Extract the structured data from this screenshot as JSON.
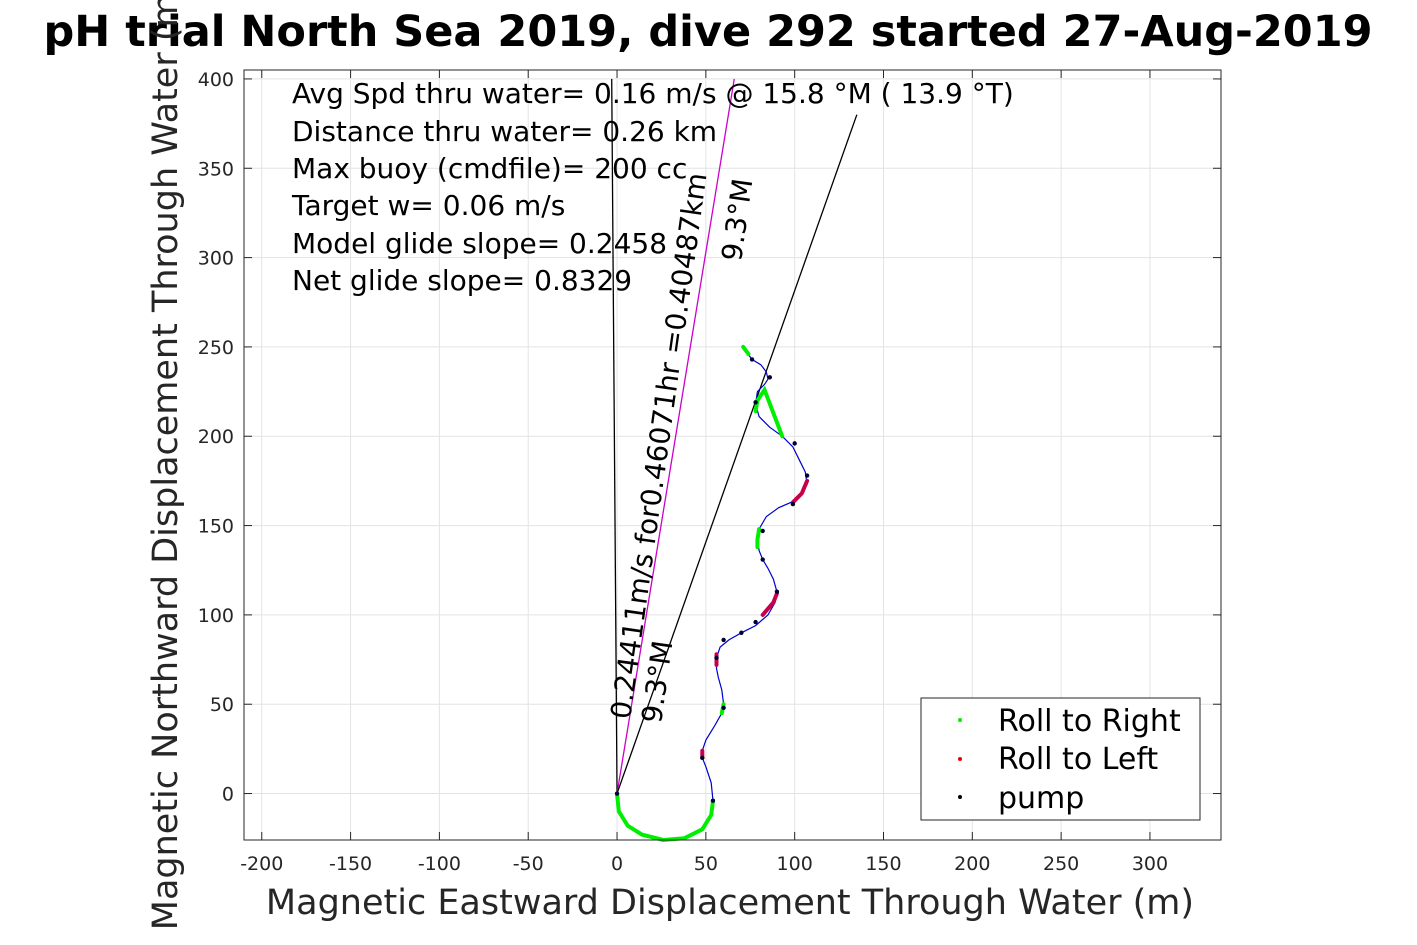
{
  "chart_data": {
    "type": "scatter",
    "title": "pH trial North Sea 2019, dive 292 started 27-Aug-2019",
    "xlabel": "Magnetic Eastward Displacement Through Water (m)",
    "ylabel": "Magnetic Northward Displacement Through Water (m)",
    "xlim": [
      -210,
      340
    ],
    "ylim": [
      -26,
      405
    ],
    "xticks": [
      -200,
      -150,
      -100,
      -50,
      0,
      50,
      100,
      150,
      200,
      250,
      300
    ],
    "yticks": [
      0,
      50,
      100,
      150,
      200,
      250,
      300,
      350,
      400
    ],
    "grid": true,
    "annotations": [
      "Avg Spd thru water=  0.16 m/s @  15.8 °M ( 13.9 °T)",
      "Distance thru water=  0.26 km",
      "Max buoy (cmdfile)= 200 cc",
      "Target w= 0.06 m/s",
      "Model glide slope= 0.2458",
      "Net glide slope= 0.8329"
    ],
    "current_label": "0.24411m/s for0.46071hr =0.40487km",
    "current_heading_labels": [
      "9.3°M",
      "9.3°M"
    ],
    "legend": {
      "placement": "bottom-right",
      "entries": [
        {
          "label": "Roll to Right",
          "color": "#00ee00"
        },
        {
          "label": "Roll to Left",
          "color": "#ee0000"
        },
        {
          "label": "pump",
          "color": "#000000"
        }
      ]
    },
    "track": {
      "color": "#0000cc",
      "points": [
        [
          0,
          0
        ],
        [
          1,
          -10
        ],
        [
          6,
          -18
        ],
        [
          14,
          -23
        ],
        [
          26,
          -26
        ],
        [
          38,
          -25
        ],
        [
          48,
          -20
        ],
        [
          53,
          -12
        ],
        [
          54,
          -4
        ],
        [
          53,
          6
        ],
        [
          50,
          15
        ],
        [
          48,
          20
        ],
        [
          48,
          24
        ],
        [
          50,
          30
        ],
        [
          55,
          38
        ],
        [
          59,
          45
        ],
        [
          60,
          50
        ],
        [
          59,
          58
        ],
        [
          57,
          65
        ],
        [
          56,
          70
        ],
        [
          56,
          76
        ],
        [
          58,
          82
        ],
        [
          63,
          86
        ],
        [
          70,
          90
        ],
        [
          78,
          94
        ],
        [
          85,
          100
        ],
        [
          89,
          107
        ],
        [
          90,
          113
        ],
        [
          88,
          120
        ],
        [
          85,
          126
        ],
        [
          82,
          131
        ],
        [
          80,
          136
        ],
        [
          79,
          142
        ],
        [
          80,
          148
        ],
        [
          84,
          155
        ],
        [
          91,
          160
        ],
        [
          98,
          163
        ],
        [
          104,
          168
        ],
        [
          107,
          173
        ],
        [
          106,
          180
        ],
        [
          103,
          186
        ],
        [
          99,
          194
        ],
        [
          93,
          200
        ],
        [
          86,
          205
        ],
        [
          80,
          211
        ],
        [
          78,
          218
        ],
        [
          79,
          225
        ],
        [
          83,
          229
        ],
        [
          85,
          232
        ],
        [
          84,
          236
        ],
        [
          81,
          240
        ],
        [
          76,
          243
        ],
        [
          73,
          247
        ],
        [
          71,
          250
        ]
      ]
    },
    "roll_right_segments": [
      [
        [
          0,
          0
        ],
        [
          1,
          -10
        ],
        [
          6,
          -18
        ],
        [
          14,
          -23
        ],
        [
          26,
          -26
        ],
        [
          38,
          -25
        ],
        [
          48,
          -20
        ],
        [
          53,
          -12
        ],
        [
          54,
          -4
        ]
      ],
      [
        [
          59,
          45
        ],
        [
          60,
          50
        ]
      ],
      [
        [
          79,
          138
        ],
        [
          79,
          142
        ],
        [
          80,
          148
        ]
      ],
      [
        [
          78,
          214
        ],
        [
          79,
          220
        ],
        [
          83,
          226
        ],
        [
          93,
          200
        ]
      ],
      [
        [
          71,
          250
        ],
        [
          74,
          246
        ]
      ]
    ],
    "roll_left_segments": [
      [
        [
          48,
          20
        ],
        [
          48,
          24
        ]
      ],
      [
        [
          56,
          72
        ],
        [
          56,
          78
        ]
      ],
      [
        [
          82,
          100
        ],
        [
          88,
          107
        ],
        [
          90,
          112
        ]
      ],
      [
        [
          99,
          163
        ],
        [
          104,
          168
        ],
        [
          107,
          175
        ]
      ]
    ],
    "pump_points": [
      [
        0,
        0
      ],
      [
        54,
        -4
      ],
      [
        48,
        20
      ],
      [
        60,
        48
      ],
      [
        56,
        76
      ],
      [
        60,
        86
      ],
      [
        70,
        90
      ],
      [
        78,
        96
      ],
      [
        90,
        113
      ],
      [
        82,
        131
      ],
      [
        82,
        147
      ],
      [
        99,
        162
      ],
      [
        107,
        178
      ],
      [
        100,
        196
      ],
      [
        78,
        219
      ],
      [
        86,
        233
      ],
      [
        76,
        243
      ]
    ],
    "lines": [
      {
        "name": "",
        "from": [
          -3,
          400
        ],
        "to": [
          0,
          0
        ],
        "color": "#000000"
      },
      {
        "name": "",
        "from": [
          0,
          0
        ],
        "to": [
          66,
          400
        ],
        "color": "#cc00cc"
      },
      {
        "name": "",
        "from": [
          0,
          0
        ],
        "to": [
          135,
          380
        ],
        "color": "#000000"
      }
    ]
  }
}
